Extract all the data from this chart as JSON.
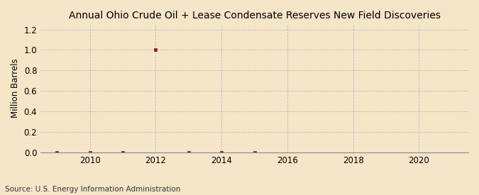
{
  "title": "Annual Ohio Crude Oil + Lease Condensate Reserves New Field Discoveries",
  "ylabel": "Million Barrels",
  "source": "Source: U.S. Energy Information Administration",
  "background_color": "#f5e6c8",
  "years": [
    2009,
    2010,
    2011,
    2012,
    2013,
    2014,
    2015
  ],
  "values": [
    0.0,
    0.0,
    0.0,
    1.0,
    0.0,
    0.0,
    0.0
  ],
  "marker_color": "#8b1a1a",
  "xlim": [
    2008.5,
    2021.5
  ],
  "ylim": [
    0.0,
    1.25
  ],
  "yticks": [
    0.0,
    0.2,
    0.4,
    0.6,
    0.8,
    1.0,
    1.2
  ],
  "xticks": [
    2010,
    2012,
    2014,
    2016,
    2018,
    2020
  ],
  "grid_color": "#bbbbbb",
  "title_fontsize": 10,
  "label_fontsize": 8.5,
  "tick_fontsize": 8.5,
  "source_fontsize": 7.5
}
